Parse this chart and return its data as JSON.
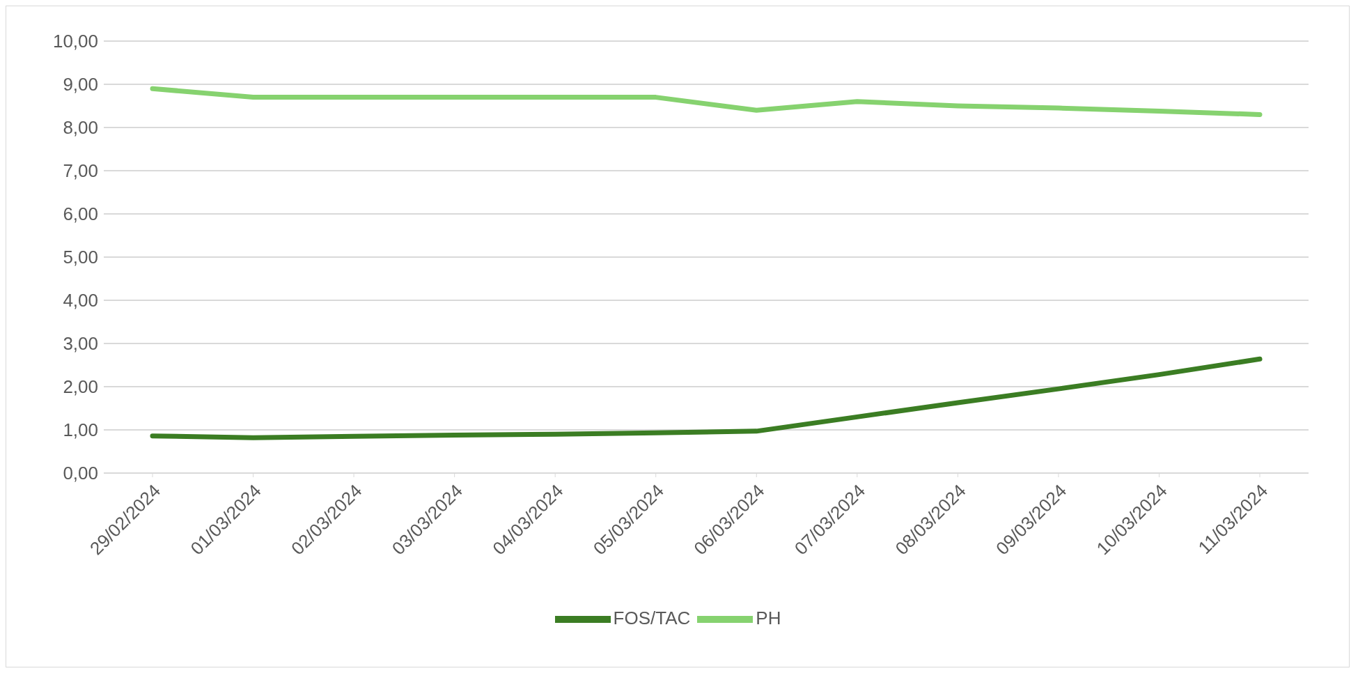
{
  "chart_data": {
    "type": "line",
    "categories": [
      "29/02/2024",
      "01/03/2024",
      "02/03/2024",
      "03/03/2024",
      "04/03/2024",
      "05/03/2024",
      "06/03/2024",
      "07/03/2024",
      "08/03/2024",
      "09/03/2024",
      "10/03/2024",
      "11/03/2024"
    ],
    "series": [
      {
        "name": "FOS/TAC",
        "color": "#3b7d23",
        "values": [
          0.86,
          0.82,
          0.85,
          0.88,
          0.9,
          0.93,
          0.97,
          1.3,
          1.63,
          1.95,
          2.28,
          2.64
        ]
      },
      {
        "name": "PH",
        "color": "#86d26f",
        "values": [
          8.9,
          8.7,
          8.7,
          8.7,
          8.7,
          8.7,
          8.4,
          8.6,
          8.5,
          8.45,
          8.38,
          8.3
        ]
      }
    ],
    "ylim": [
      0,
      10
    ],
    "yticks": [
      {
        "value": 0,
        "label": "0,00"
      },
      {
        "value": 1,
        "label": "1,00"
      },
      {
        "value": 2,
        "label": "2,00"
      },
      {
        "value": 3,
        "label": "3,00"
      },
      {
        "value": 4,
        "label": "4,00"
      },
      {
        "value": 5,
        "label": "5,00"
      },
      {
        "value": 6,
        "label": "6,00"
      },
      {
        "value": 7,
        "label": "7,00"
      },
      {
        "value": 8,
        "label": "8,00"
      },
      {
        "value": 9,
        "label": "9,00"
      },
      {
        "value": 10,
        "label": "10,00"
      }
    ],
    "grid": "y",
    "legend": "bottom",
    "marker": "none",
    "line_style": "solid"
  }
}
